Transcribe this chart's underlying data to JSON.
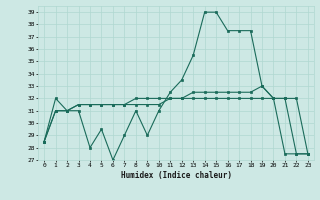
{
  "title": "",
  "xlabel": "Humidex (Indice chaleur)",
  "bg_color": "#cde8e4",
  "grid_color": "#b0d8d0",
  "line_color": "#1a6b5a",
  "xlim": [
    -0.5,
    23.5
  ],
  "ylim": [
    27,
    39.5
  ],
  "yticks": [
    27,
    28,
    29,
    30,
    31,
    32,
    33,
    34,
    35,
    36,
    37,
    38,
    39
  ],
  "xticks": [
    0,
    1,
    2,
    3,
    4,
    5,
    6,
    7,
    8,
    9,
    10,
    11,
    12,
    13,
    14,
    15,
    16,
    17,
    18,
    19,
    20,
    21,
    22,
    23
  ],
  "series": [
    [
      28.5,
      32,
      31,
      31,
      28,
      29.5,
      27,
      29,
      31,
      29,
      31,
      32.5,
      33.5,
      35.5,
      39,
      39,
      37.5,
      37.5,
      37.5,
      33,
      32,
      27.5,
      27.5,
      27.5
    ],
    [
      28.5,
      31,
      31,
      31.5,
      31.5,
      31.5,
      31.5,
      31.5,
      31.5,
      31.5,
      31.5,
      32,
      32,
      32.5,
      32.5,
      32.5,
      32.5,
      32.5,
      32.5,
      33,
      32,
      32,
      32,
      27.5
    ],
    [
      28.5,
      31,
      31,
      31.5,
      31.5,
      31.5,
      31.5,
      31.5,
      32,
      32,
      32,
      32,
      32,
      32,
      32,
      32,
      32,
      32,
      32,
      32,
      32,
      32,
      27.5,
      27.5
    ]
  ]
}
